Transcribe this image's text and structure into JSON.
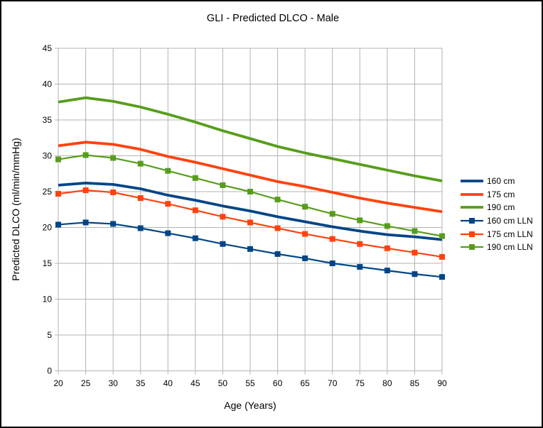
{
  "chart_data": {
    "type": "line",
    "title": "GLI - Predicted DLCO - Male",
    "xlabel": "Age (Years)",
    "ylabel": "Predicted DLCO (ml/min/mmHg)",
    "x": [
      20,
      25,
      30,
      35,
      40,
      45,
      50,
      55,
      60,
      65,
      70,
      75,
      80,
      85,
      90
    ],
    "xlim": [
      20,
      90
    ],
    "ylim": [
      0,
      45
    ],
    "y_ticks": [
      0,
      5,
      10,
      15,
      20,
      25,
      30,
      35,
      40,
      45
    ],
    "grid": true,
    "grid_color": "#b3b3b3",
    "axis_color": "#b3b3b3",
    "legend_position": "right",
    "series": [
      {
        "name": "160 cm",
        "color": "#004586",
        "line_width": 3.8,
        "marker": "none",
        "values": [
          25.9,
          26.2,
          26.0,
          25.4,
          24.5,
          23.8,
          23.0,
          22.3,
          21.5,
          20.8,
          20.1,
          19.5,
          19.0,
          18.7,
          18.3
        ]
      },
      {
        "name": "175 cm",
        "color": "#ff420e",
        "line_width": 3.8,
        "marker": "none",
        "values": [
          31.4,
          31.9,
          31.6,
          30.9,
          29.9,
          29.1,
          28.2,
          27.3,
          26.4,
          25.7,
          24.9,
          24.1,
          23.4,
          22.8,
          22.2
        ]
      },
      {
        "name": "190 cm",
        "color": "#579d1c",
        "line_width": 3.8,
        "marker": "none",
        "values": [
          37.5,
          38.1,
          37.6,
          36.8,
          35.8,
          34.7,
          33.5,
          32.4,
          31.3,
          30.4,
          29.6,
          28.8,
          28.0,
          27.2,
          26.5
        ]
      },
      {
        "name": "160 cm LLN",
        "color": "#004586",
        "line_width": 2.2,
        "marker": "square",
        "values": [
          20.4,
          20.7,
          20.5,
          19.9,
          19.2,
          18.5,
          17.7,
          17.0,
          16.3,
          15.7,
          15.0,
          14.5,
          14.0,
          13.5,
          13.1
        ]
      },
      {
        "name": "175 cm LLN",
        "color": "#ff420e",
        "line_width": 2.2,
        "marker": "square",
        "values": [
          24.7,
          25.2,
          24.9,
          24.1,
          23.3,
          22.4,
          21.5,
          20.7,
          19.9,
          19.1,
          18.4,
          17.7,
          17.1,
          16.5,
          15.9
        ]
      },
      {
        "name": "190 cm LLN",
        "color": "#579d1c",
        "line_width": 2.2,
        "marker": "square",
        "values": [
          29.5,
          30.1,
          29.7,
          28.9,
          27.9,
          26.9,
          25.9,
          25.0,
          23.9,
          22.9,
          21.9,
          21.0,
          20.2,
          19.5,
          18.8
        ]
      }
    ]
  }
}
